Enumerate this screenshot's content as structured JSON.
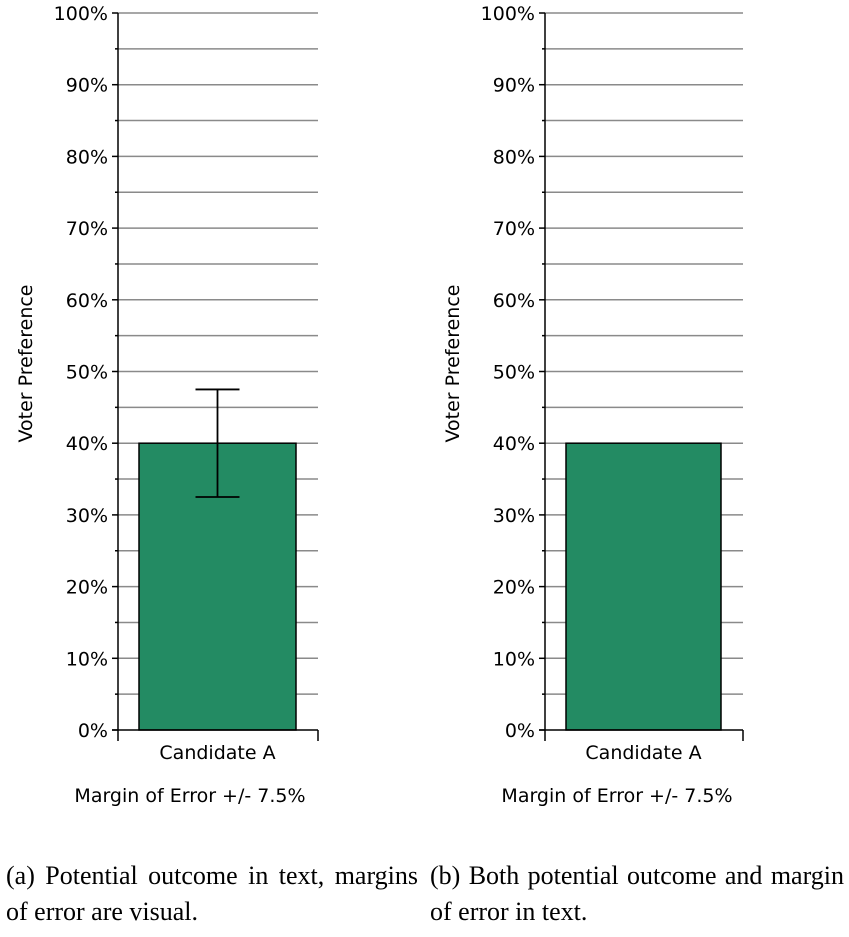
{
  "chart_data": [
    {
      "type": "bar",
      "categories": [
        "Candidate A"
      ],
      "values": [
        40
      ],
      "ylabel": "Voter Preference",
      "ylim": [
        0,
        100
      ],
      "yticks": [
        "0%",
        "10%",
        "20%",
        "30%",
        "40%",
        "50%",
        "60%",
        "70%",
        "80%",
        "90%",
        "100%"
      ],
      "error_bar": {
        "low": 32.5,
        "high": 47.5
      },
      "note": "Margin of Error +/- 7.5%",
      "bar_color": "#238b63",
      "grid": true,
      "caption": "(a) Potential outcome in text, margins of error are visual."
    },
    {
      "type": "bar",
      "categories": [
        "Candidate A"
      ],
      "values": [
        40
      ],
      "ylabel": "Voter Preference",
      "ylim": [
        0,
        100
      ],
      "yticks": [
        "0%",
        "10%",
        "20%",
        "30%",
        "40%",
        "50%",
        "60%",
        "70%",
        "80%",
        "90%",
        "100%"
      ],
      "note": "Margin of Error +/- 7.5%",
      "bar_color": "#238b63",
      "grid": true,
      "caption": "(b) Both potential outcome and margin of error in text."
    }
  ]
}
